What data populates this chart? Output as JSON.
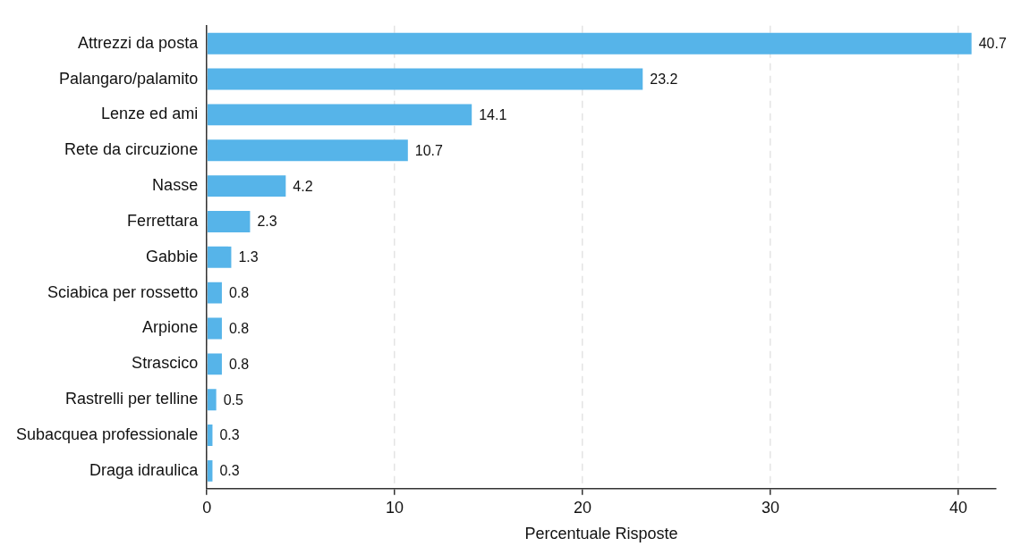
{
  "chart_data": {
    "type": "bar",
    "orientation": "horizontal",
    "xlabel": "Percentuale Risposte",
    "categories": [
      "Attrezzi da posta",
      "Palangaro/palamito",
      "Lenze ed ami",
      "Rete da circuzione",
      "Nasse",
      "Ferrettara",
      "Gabbie",
      "Sciabica per rossetto",
      "Arpione",
      "Strascico",
      "Rastrelli per telline",
      "Subacquea professionale",
      "Draga idraulica"
    ],
    "values": [
      40.7,
      23.2,
      14.1,
      10.7,
      4.2,
      2.3,
      1.3,
      0.8,
      0.8,
      0.8,
      0.5,
      0.3,
      0.3
    ],
    "color": "#56b4e9",
    "xlim": [
      0,
      42
    ],
    "xticks": [
      0,
      10,
      20,
      30,
      40
    ],
    "grid": "x",
    "data_labels": true,
    "legend": false
  }
}
